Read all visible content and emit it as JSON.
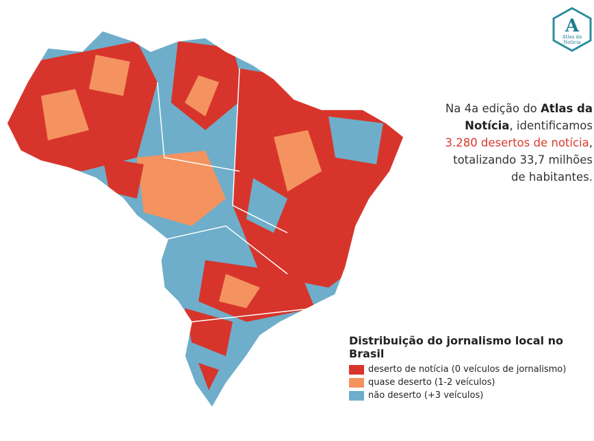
{
  "logo": {
    "letter": "A",
    "name_line1": "Atlas da",
    "name_line2": "Notícia"
  },
  "intro": {
    "part1": "Na 4a edição do ",
    "bold1": "Atlas da",
    "bold2": "Notícia",
    "part2": ", identificamos",
    "highlight": "3.280 desertos de notícia",
    "part3": ",",
    "part4": "totalizando 33,7 milhões",
    "part5": "de habitantes."
  },
  "legend": {
    "title": "Distribuição do jornalismo local no Brasil",
    "items": [
      {
        "label": "deserto de notícia (0 veículos de jornalismo)",
        "color": "#d7352b"
      },
      {
        "label": "quase deserto (1-2 veículos)",
        "color": "#f4935f"
      },
      {
        "label": "não deserto (+3 veículos)",
        "color": "#6eaecb"
      }
    ]
  }
}
